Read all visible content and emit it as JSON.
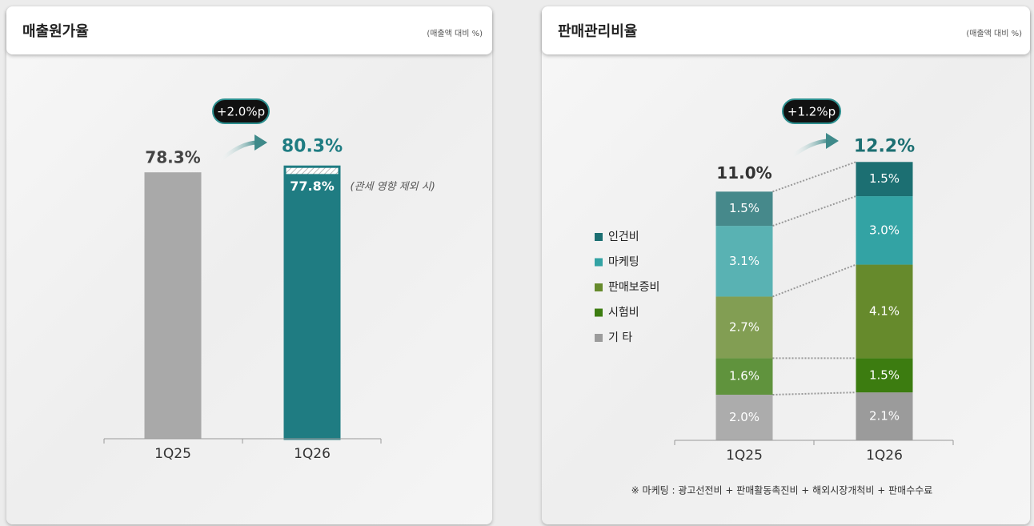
{
  "chart_data": [
    {
      "type": "bar",
      "title": "매출원가율",
      "subtitle": "(매출액 대비 %)",
      "categories": [
        "1Q25",
        "1Q26"
      ],
      "values": [
        78.3,
        80.3
      ],
      "value_labels": [
        "78.3%",
        "80.3%"
      ],
      "colors": [
        "#a9a9a9",
        "#1f7c82"
      ],
      "annotations": {
        "change": "+2.0%p",
        "adjusted_value": 77.8,
        "adjusted_label": "77.8%",
        "adjusted_note": "(관세 영향 제외 시)"
      }
    },
    {
      "type": "stacked_bar",
      "title": "판매관리비율",
      "subtitle": "(매출액 대비 %)",
      "categories": [
        "1Q25",
        "1Q26"
      ],
      "series": [
        {
          "name": "인건비",
          "color": "#1c6f72",
          "values": [
            1.5,
            1.5
          ],
          "value_labels": [
            "1.5%",
            "1.5%"
          ]
        },
        {
          "name": "마케팅",
          "color": "#33a3a4",
          "values": [
            3.1,
            3.0
          ],
          "value_labels": [
            "3.1%",
            "3.0%"
          ]
        },
        {
          "name": "판매보증비",
          "color": "#668a2c",
          "values": [
            2.7,
            4.1
          ],
          "value_labels": [
            "2.7%",
            "4.1%"
          ]
        },
        {
          "name": "시험비",
          "color": "#3c7c10",
          "values": [
            1.6,
            1.5
          ],
          "value_labels": [
            "1.6%",
            "1.5%"
          ]
        },
        {
          "name": "기 타",
          "color": "#9b9b9b",
          "values": [
            2.0,
            2.1
          ],
          "value_labels": [
            "2.0%",
            "2.1%"
          ]
        }
      ],
      "totals": [
        11.0,
        12.2
      ],
      "total_labels": [
        "11.0%",
        "12.2%"
      ],
      "annotations": {
        "change": "+1.2%p",
        "footnote": "※ 마케팅 : 광고선전비 + 판매활동촉진비 + 해외시장개척비 + 판매수수료"
      }
    }
  ]
}
